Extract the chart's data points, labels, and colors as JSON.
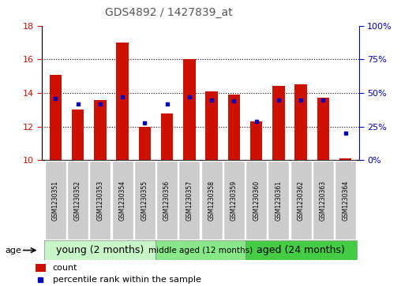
{
  "title": "GDS4892 / 1427839_at",
  "samples": [
    "GSM1230351",
    "GSM1230352",
    "GSM1230353",
    "GSM1230354",
    "GSM1230355",
    "GSM1230356",
    "GSM1230357",
    "GSM1230358",
    "GSM1230359",
    "GSM1230360",
    "GSM1230361",
    "GSM1230362",
    "GSM1230363",
    "GSM1230364"
  ],
  "counts": [
    15.1,
    13.0,
    13.6,
    17.0,
    12.0,
    12.8,
    16.0,
    14.1,
    13.9,
    12.3,
    14.4,
    14.5,
    13.7,
    10.1
  ],
  "percentiles": [
    46,
    42,
    42,
    47,
    28,
    42,
    47,
    45,
    44,
    29,
    45,
    45,
    45,
    20
  ],
  "ylim_left": [
    10,
    18
  ],
  "ylim_right": [
    0,
    100
  ],
  "yticks_left": [
    10,
    12,
    14,
    16,
    18
  ],
  "yticks_right": [
    0,
    25,
    50,
    75,
    100
  ],
  "bar_color": "#cc1100",
  "dot_color": "#0000bb",
  "bar_width": 0.55,
  "groups": [
    {
      "label": "young (2 months)",
      "start": 0,
      "end": 5
    },
    {
      "label": "middle aged (12 months)",
      "start": 5,
      "end": 9
    },
    {
      "label": "aged (24 months)",
      "start": 9,
      "end": 14
    }
  ],
  "group_colors": [
    "#c8f5c8",
    "#88e888",
    "#44cc44"
  ],
  "sample_box_color": "#cccccc",
  "age_label": "age",
  "legend_count_label": "count",
  "legend_pct_label": "percentile rank within the sample",
  "background_color": "#ffffff",
  "tick_color_left": "#cc1100",
  "tick_color_right": "#0000bb",
  "title_color": "#555555"
}
